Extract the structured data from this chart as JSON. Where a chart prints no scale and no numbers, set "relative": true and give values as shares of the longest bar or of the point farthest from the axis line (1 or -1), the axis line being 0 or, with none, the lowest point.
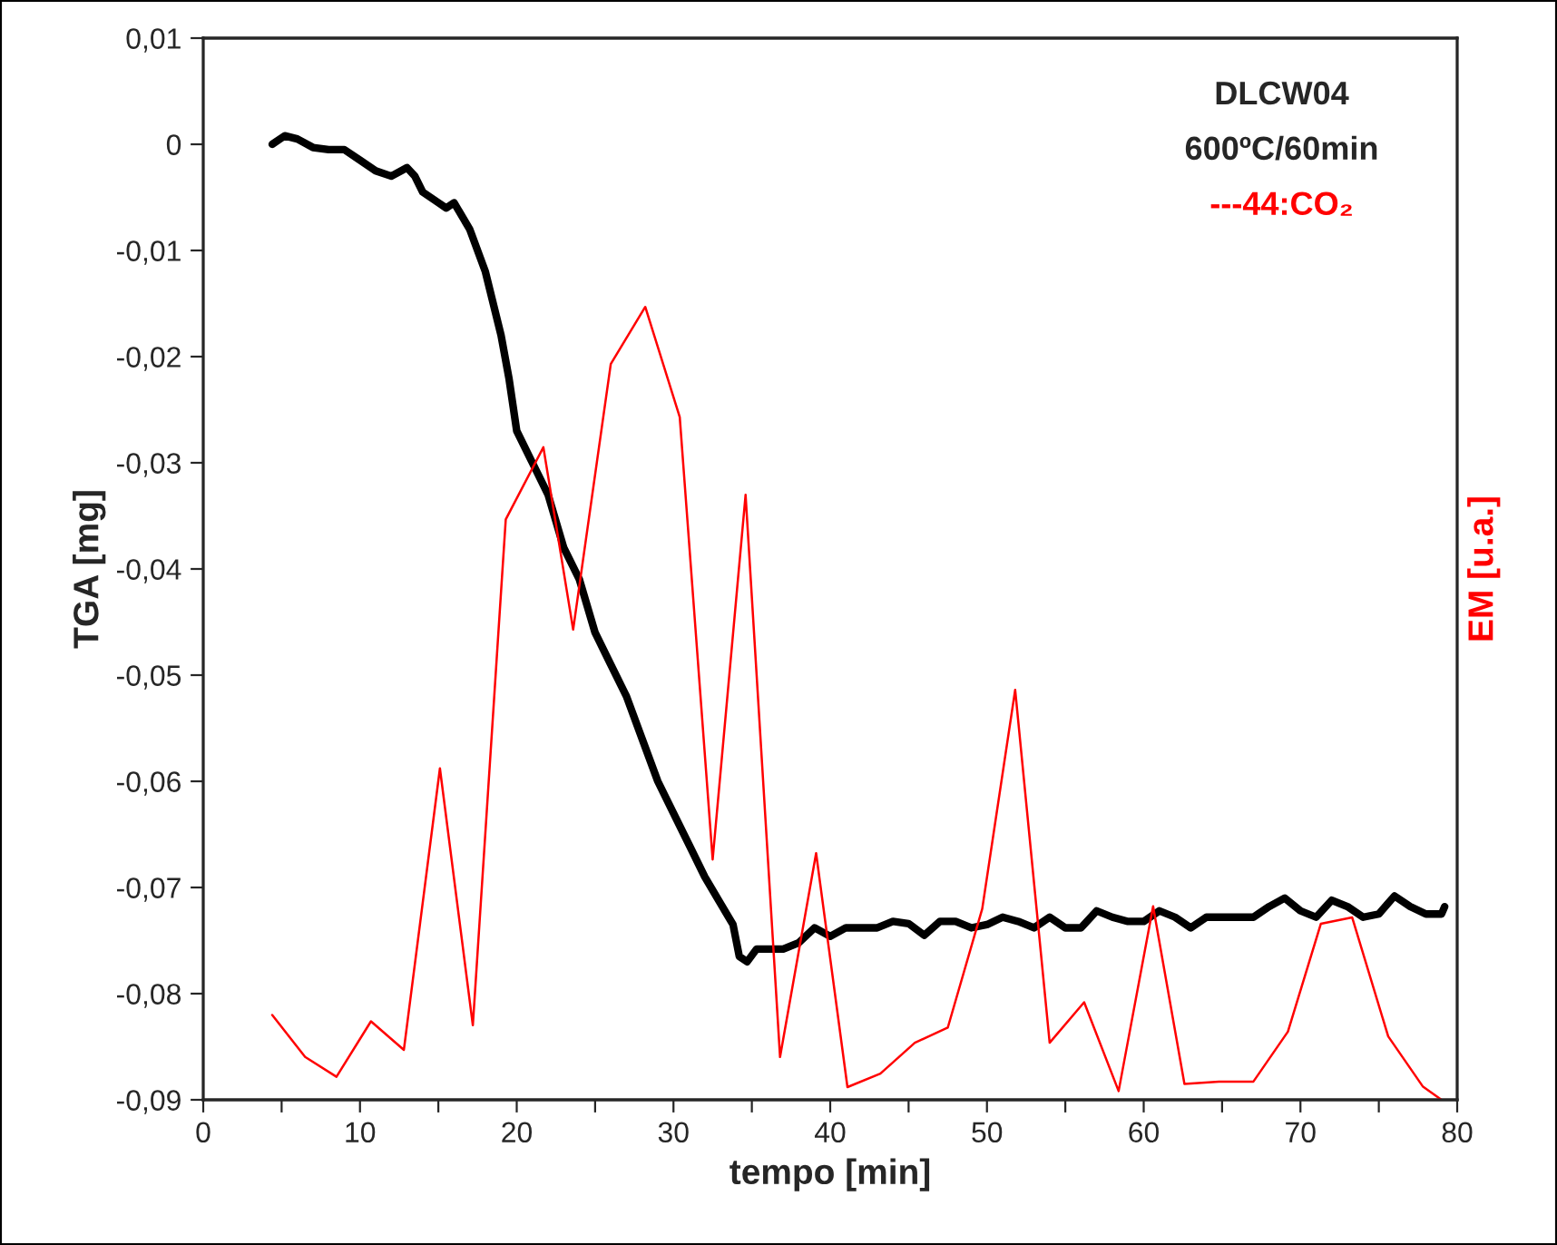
{
  "chart_data": [
    {
      "type": "line",
      "xlabel": "tempo [min]",
      "ylabel": "TGA [mg]",
      "annotations": [
        "DLCW04",
        "600ºC/60min"
      ],
      "xlim": [
        0,
        80
      ],
      "xticks": [
        0,
        {
          "value": 5,
          "label": null
        },
        10,
        {
          "value": 15,
          "label": null
        },
        20,
        {
          "value": 25,
          "label": null
        },
        30,
        {
          "value": 35,
          "label": null
        },
        40,
        {
          "value": 45,
          "label": null
        },
        50,
        {
          "value": 55,
          "label": null
        },
        60,
        {
          "value": 65,
          "label": null
        },
        70,
        {
          "value": 75,
          "label": null
        },
        80
      ],
      "ylim": [
        -0.09,
        0.01
      ],
      "yticks": [
        {
          "value": 0.01,
          "label": "0,01"
        },
        {
          "value": 0,
          "label": "0"
        },
        {
          "value": -0.01,
          "label": "-0,01"
        },
        {
          "value": -0.02,
          "label": "-0,02"
        },
        {
          "value": -0.03,
          "label": "-0,03"
        },
        {
          "value": -0.04,
          "label": "-0,04"
        },
        {
          "value": -0.05,
          "label": "-0,05"
        },
        {
          "value": -0.06,
          "label": "-0,06"
        },
        {
          "value": -0.07,
          "label": "-0,07"
        },
        {
          "value": -0.08,
          "label": "-0,08"
        },
        {
          "value": -0.09,
          "label": "-0,09"
        }
      ],
      "grid": false,
      "marker": "none",
      "series": [
        {
          "color": "#000000",
          "x": [
            4.4,
            5.2,
            6,
            7,
            8,
            9,
            10,
            11,
            12,
            13,
            13.5,
            14,
            15,
            15.5,
            16,
            17,
            18,
            19,
            19.5,
            20,
            21,
            22,
            23,
            24,
            25,
            26,
            27,
            28,
            29,
            30,
            31,
            32,
            33,
            33.8,
            34.2,
            34.7,
            35.3,
            37,
            38,
            39,
            40,
            41,
            42,
            43,
            44,
            45,
            46,
            47,
            48,
            49,
            50,
            51,
            52,
            53,
            54,
            55,
            56,
            57,
            58,
            59,
            60,
            61,
            62,
            63,
            64,
            65,
            66,
            67,
            68,
            69,
            70,
            71,
            72,
            73,
            74,
            75,
            76,
            77,
            78,
            79,
            79.2
          ],
          "values": [
            0,
            0.0008,
            0.0005,
            -0.0003,
            -0.0005,
            -0.0005,
            -0.0015,
            -0.0025,
            -0.003,
            -0.0022,
            -0.003,
            -0.0045,
            -0.0055,
            -0.006,
            -0.0055,
            -0.008,
            -0.012,
            -0.018,
            -0.022,
            -0.027,
            -0.03,
            -0.033,
            -0.038,
            -0.041,
            -0.046,
            -0.049,
            -0.052,
            -0.056,
            -0.06,
            -0.063,
            -0.066,
            -0.069,
            -0.0715,
            -0.0735,
            -0.0765,
            -0.077,
            -0.0758,
            -0.0758,
            -0.0752,
            -0.0738,
            -0.0746,
            -0.0738,
            -0.0738,
            -0.0738,
            -0.0732,
            -0.0734,
            -0.0745,
            -0.0732,
            -0.0732,
            -0.0738,
            -0.0735,
            -0.0728,
            -0.0732,
            -0.0738,
            -0.0728,
            -0.0738,
            -0.0738,
            -0.0722,
            -0.0728,
            -0.0732,
            -0.0732,
            -0.0722,
            -0.0728,
            -0.0738,
            -0.0728,
            -0.0728,
            -0.0728,
            -0.0728,
            -0.0718,
            -0.071,
            -0.0722,
            -0.0728,
            -0.0712,
            -0.0718,
            -0.0728,
            -0.0725,
            -0.0708,
            -0.0718,
            -0.0725,
            -0.0725,
            -0.0718
          ]
        }
      ]
    },
    {
      "type": "line",
      "y2label": "EM [u.a.]",
      "relative": true,
      "xlim": [
        0,
        80
      ],
      "tick_labels": false,
      "marker": "none",
      "series": [
        {
          "name": "---44:CO₂",
          "color": "#ff0000",
          "axis": "y2",
          "x": [
            4.4,
            6.5,
            8.5,
            10.7,
            12.8,
            15.1,
            17.2,
            19.3,
            21.7,
            23.6,
            26.0,
            28.2,
            30.4,
            32.5,
            34.6,
            36.8,
            39.1,
            41.1,
            43.2,
            45.4,
            47.5,
            49.7,
            51.8,
            54.0,
            56.2,
            58.4,
            60.6,
            62.6,
            64.8,
            67.0,
            69.2,
            71.3,
            73.3,
            75.6,
            77.8,
            79.0
          ],
          "values": [
            0.107,
            0.054,
            0.029,
            0.099,
            0.063,
            0.418,
            0.094,
            0.732,
            0.823,
            0.593,
            0.928,
            1,
            0.861,
            0.303,
            0.763,
            0.054,
            0.311,
            0.016,
            0.033,
            0.072,
            0.091,
            0.241,
            0.517,
            0.072,
            0.123,
            0.011,
            0.244,
            0.02,
            0.023,
            0.023,
            0.086,
            0.222,
            0.23,
            0.08,
            0.017,
            0
          ]
        }
      ]
    }
  ]
}
